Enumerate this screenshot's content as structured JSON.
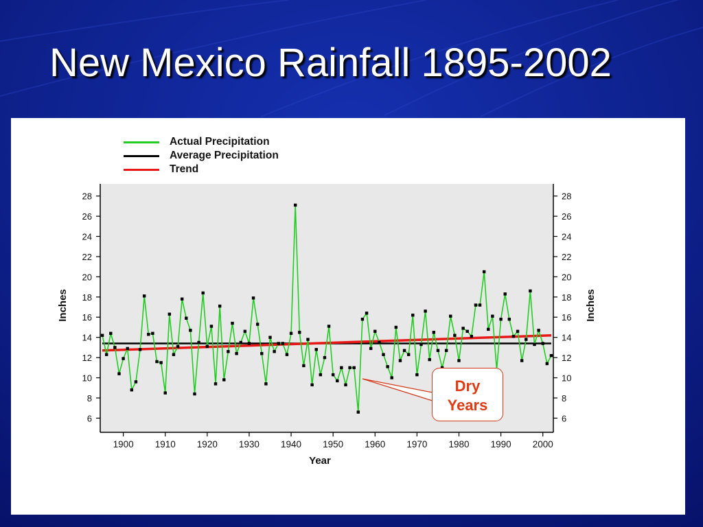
{
  "slide": {
    "title": "New Mexico Rainfall 1895-2002"
  },
  "colors": {
    "actual": "#22cc22",
    "average": "#000000",
    "trend": "#e81818",
    "callout_text": "#e03a14",
    "plot_bg": "#e8e8e8",
    "slide_bg": "#0a1a80"
  },
  "chart_data": {
    "type": "line",
    "xlabel": "Year",
    "ylabel_left": "Inches",
    "ylabel_right": "Inches",
    "xlim": [
      1894.5,
      2002.5
    ],
    "ylim": [
      4.6,
      29.2
    ],
    "x_ticks": [
      1900,
      1910,
      1920,
      1930,
      1940,
      1950,
      1960,
      1970,
      1980,
      1990,
      2000
    ],
    "x_tick_labels": [
      "1900",
      "1910",
      "1920",
      "1930",
      "1940",
      "1950",
      "1960",
      "1970",
      "1980",
      "1990",
      "2000"
    ],
    "y_ticks": [
      6,
      8,
      10,
      12,
      14,
      16,
      18,
      20,
      22,
      24,
      26,
      28
    ],
    "y_tick_labels": [
      "6",
      "8",
      "10",
      "12",
      "14",
      "16",
      "18",
      "20",
      "22",
      "24",
      "26",
      "28"
    ],
    "grid": false,
    "legend": {
      "placement": "top-left",
      "items": [
        {
          "label": "Actual Precipitation",
          "color": "#22cc22"
        },
        {
          "label": "Average Precipitation",
          "color": "#000000"
        },
        {
          "label": "Trend",
          "color": "#e81818"
        }
      ]
    },
    "series": [
      {
        "name": "Actual Precipitation",
        "x": [
          1895,
          1896,
          1897,
          1898,
          1899,
          1900,
          1901,
          1902,
          1903,
          1904,
          1905,
          1906,
          1907,
          1908,
          1909,
          1910,
          1911,
          1912,
          1913,
          1914,
          1915,
          1916,
          1917,
          1918,
          1919,
          1920,
          1921,
          1922,
          1923,
          1924,
          1925,
          1926,
          1927,
          1928,
          1929,
          1930,
          1931,
          1932,
          1933,
          1934,
          1935,
          1936,
          1937,
          1938,
          1939,
          1940,
          1941,
          1942,
          1943,
          1944,
          1945,
          1946,
          1947,
          1948,
          1949,
          1950,
          1951,
          1952,
          1953,
          1954,
          1955,
          1956,
          1957,
          1958,
          1959,
          1960,
          1961,
          1962,
          1963,
          1964,
          1965,
          1966,
          1967,
          1968,
          1969,
          1970,
          1971,
          1972,
          1973,
          1974,
          1975,
          1976,
          1977,
          1978,
          1979,
          1980,
          1981,
          1982,
          1983,
          1984,
          1985,
          1986,
          1987,
          1988,
          1989,
          1990,
          1991,
          1992,
          1993,
          1994,
          1995,
          1996,
          1997,
          1998,
          1999,
          2000,
          2001,
          2002
        ],
        "values": [
          14.2,
          12.3,
          14.4,
          13.0,
          10.4,
          11.9,
          12.9,
          8.8,
          9.6,
          12.8,
          18.1,
          14.3,
          14.4,
          11.6,
          11.5,
          8.5,
          16.3,
          12.3,
          13.1,
          17.8,
          15.9,
          14.7,
          8.4,
          13.5,
          18.4,
          13.1,
          15.1,
          9.4,
          17.1,
          9.8,
          12.6,
          15.4,
          12.4,
          13.5,
          14.6,
          13.4,
          17.9,
          15.3,
          12.4,
          9.4,
          14.0,
          12.6,
          13.4,
          13.4,
          12.3,
          14.4,
          27.1,
          14.5,
          11.2,
          13.8,
          9.3,
          12.8,
          10.3,
          12.0,
          15.1,
          10.3,
          9.7,
          11.0,
          9.3,
          11.0,
          11.0,
          6.6,
          15.8,
          16.4,
          12.9,
          14.6,
          13.5,
          12.3,
          11.1,
          10.0,
          15.0,
          11.7,
          12.7,
          12.3,
          16.2,
          10.3,
          13.3,
          16.6,
          11.8,
          14.5,
          12.7,
          11.0,
          12.7,
          16.1,
          14.2,
          11.7,
          14.9,
          14.6,
          14.1,
          17.2,
          17.2,
          20.5,
          14.8,
          16.1,
          10.8,
          15.8,
          18.3,
          15.8,
          14.1,
          14.6,
          11.7,
          13.8,
          18.6,
          13.3,
          14.7,
          13.4,
          11.4,
          12.2
        ]
      },
      {
        "name": "Average Precipitation",
        "x": [
          1895,
          2002
        ],
        "values": [
          13.4,
          13.4
        ]
      },
      {
        "name": "Trend",
        "x": [
          1895,
          2002
        ],
        "values": [
          12.7,
          14.2
        ]
      }
    ],
    "annotations": [
      {
        "text_lines": [
          "Dry",
          "Years"
        ],
        "points_to": {
          "x": 1957,
          "y": 9.9
        }
      }
    ]
  }
}
